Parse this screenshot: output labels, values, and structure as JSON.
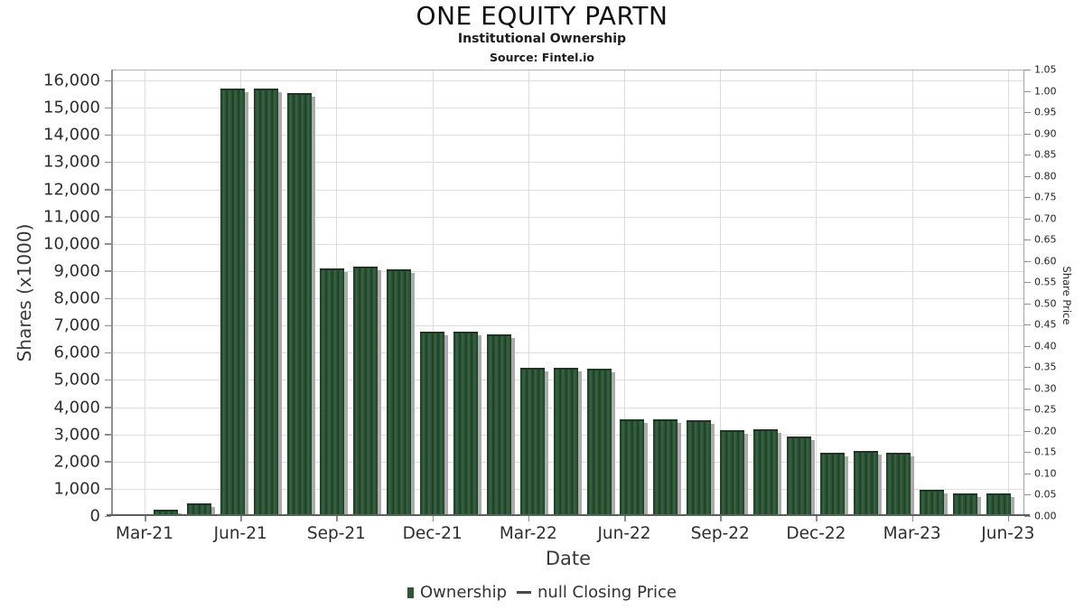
{
  "header": {
    "title": "ONE EQUITY PARTN",
    "subtitle": "Institutional Ownership",
    "source": "Source: Fintel.io"
  },
  "chart_data": {
    "type": "bar",
    "title": "ONE EQUITY PARTN",
    "subtitle": "Institutional Ownership",
    "source": "Source: Fintel.io",
    "xlabel": "Date",
    "ylabel_left": "Shares (x1000)",
    "ylabel_right": "Share Price",
    "grid": true,
    "legend_position": "bottom",
    "bar_color": "#2d5536",
    "x_tick_labels": [
      "Mar-21",
      "Jun-21",
      "Sep-21",
      "Dec-21",
      "Mar-22",
      "Jun-22",
      "Sep-22",
      "Dec-22",
      "Mar-23",
      "Jun-23"
    ],
    "y_left_tick_labels": [
      "0",
      "1,000",
      "2,000",
      "3,000",
      "4,000",
      "5,000",
      "6,000",
      "7,000",
      "8,000",
      "9,000",
      "10,000",
      "11,000",
      "12,000",
      "13,000",
      "14,000",
      "15,000",
      "16,000"
    ],
    "y_left_axis_max": 16400,
    "y_left_tick_step": 1000,
    "y_right_tick_labels": [
      "0.00",
      "0.05",
      "0.10",
      "0.15",
      "0.20",
      "0.25",
      "0.30",
      "0.35",
      "0.40",
      "0.45",
      "0.50",
      "0.55",
      "0.60",
      "0.65",
      "0.70",
      "0.75",
      "0.80",
      "0.85",
      "0.90",
      "0.95",
      "1.00",
      "1.05"
    ],
    "y_right_axis_max": 1.05,
    "series": [
      {
        "name": "Ownership",
        "type": "bar",
        "x": [
          "Mar-21",
          "Apr-21",
          "May-21",
          "Jun-21",
          "Jul-21",
          "Aug-21",
          "Sep-21",
          "Oct-21",
          "Nov-21",
          "Dec-21",
          "Jan-22",
          "Feb-22",
          "Mar-22",
          "Apr-22",
          "May-22",
          "Jun-22",
          "Jul-22",
          "Aug-22",
          "Sep-22",
          "Oct-22",
          "Nov-22",
          "Dec-22",
          "Jan-23",
          "Feb-23",
          "Mar-23",
          "Apr-23"
        ],
        "values": [
          100,
          330,
          15570,
          15570,
          15400,
          8950,
          9030,
          8930,
          6650,
          6650,
          6550,
          5310,
          5320,
          5290,
          3420,
          3430,
          3380,
          3020,
          3040,
          2780,
          2190,
          2270,
          2200,
          830,
          700,
          690
        ]
      },
      {
        "name": "null Closing Price",
        "type": "line",
        "values": []
      }
    ],
    "legend": {
      "items": [
        {
          "label": "Ownership",
          "marker": "square",
          "color": "#2d5536"
        },
        {
          "label": "null Closing Price",
          "marker": "dash",
          "color": "#4a4a4a"
        }
      ]
    }
  }
}
